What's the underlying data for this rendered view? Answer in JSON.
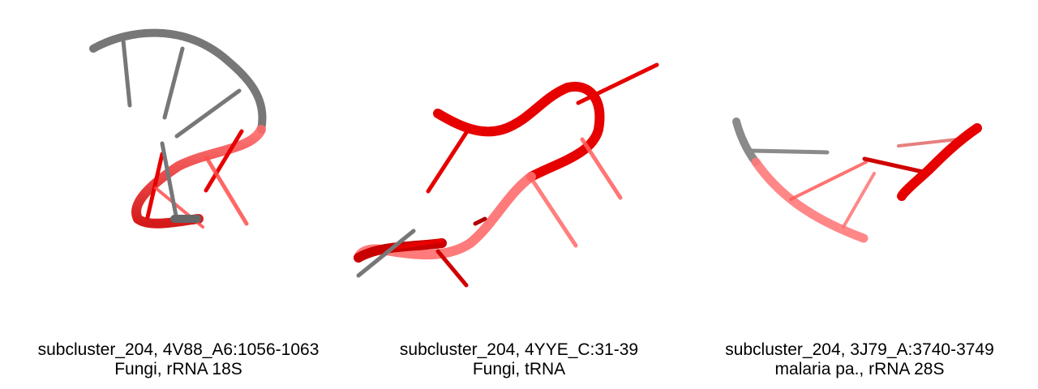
{
  "panels": [
    {
      "title": "subcluster_204, 4V88_A6:1056-1063",
      "subtitle": "Fungi, rRNA 18S"
    },
    {
      "title": "subcluster_204, 4YYE_C:31-39",
      "subtitle": "Fungi, tRNA"
    },
    {
      "title": "subcluster_204, 3J79_A:3740-3749",
      "subtitle": "malaria pa., rRNA 28S"
    }
  ],
  "colors": {
    "highlight": "#e60000",
    "backbone_gray": "#7a7a7a",
    "background": "#ffffff"
  }
}
